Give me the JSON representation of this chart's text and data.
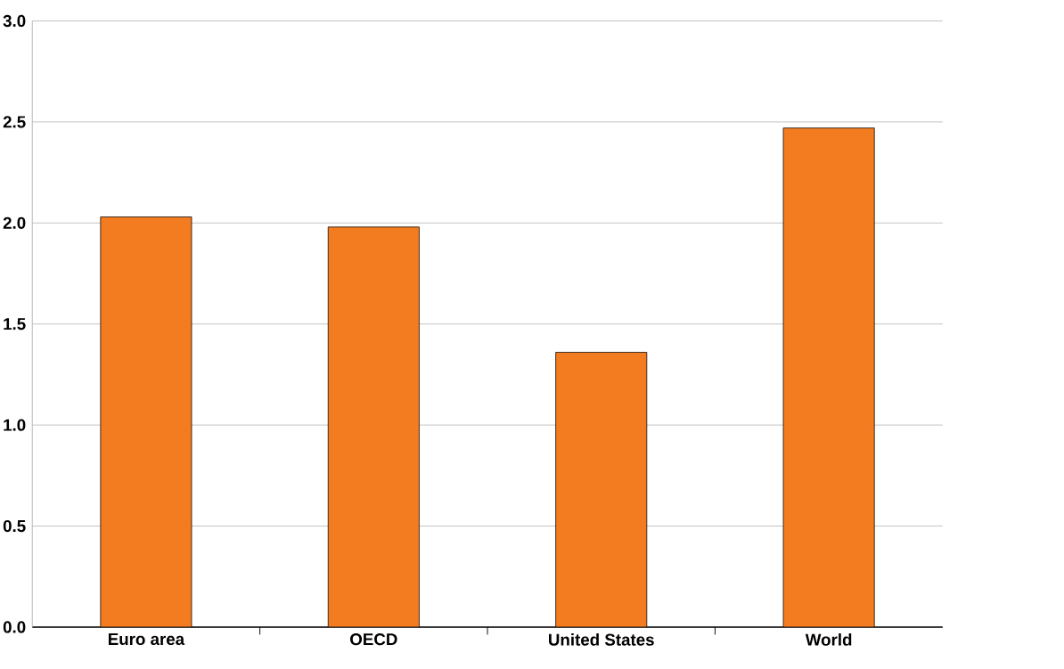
{
  "chart_data": {
    "type": "bar",
    "categories": [
      "Euro area",
      "OECD",
      "United States",
      "World"
    ],
    "values": [
      2.03,
      1.98,
      1.36,
      2.47
    ],
    "color": "#f47c20",
    "ylim": [
      0,
      3
    ],
    "yticks": [
      {
        "value": 0,
        "label": "0.0"
      },
      {
        "value": 0.5,
        "label": "0.5"
      },
      {
        "value": 1,
        "label": "1.0"
      },
      {
        "value": 1.5,
        "label": "1.5"
      },
      {
        "value": 2,
        "label": "2.0"
      },
      {
        "value": 2.5,
        "label": "2.5"
      },
      {
        "value": 3,
        "label": "3.0"
      }
    ],
    "grid": "y"
  }
}
